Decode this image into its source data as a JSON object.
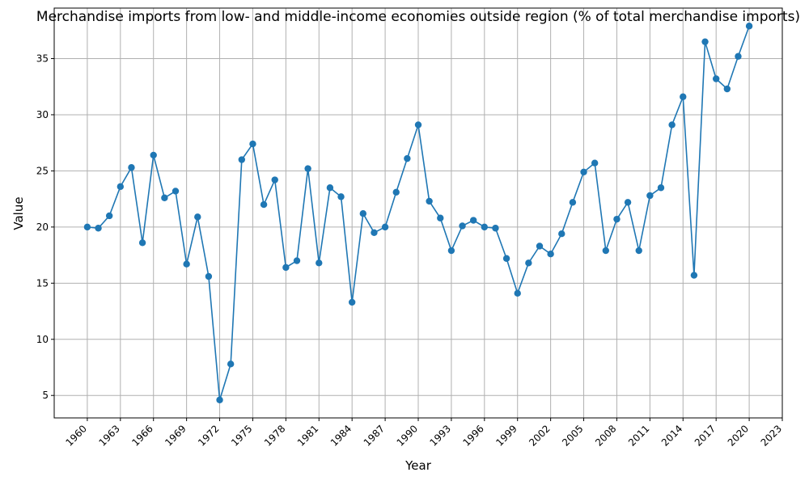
{
  "chart_data": {
    "type": "line",
    "title": "Merchandise imports from low- and middle-income economies outside region (% of total merchandise imports)",
    "xlabel": "Year",
    "ylabel": "Value",
    "xlim": [
      1957,
      2023
    ],
    "ylim": [
      3,
      39.5
    ],
    "x_ticks": [
      1960,
      1963,
      1966,
      1969,
      1972,
      1975,
      1978,
      1981,
      1984,
      1987,
      1990,
      1993,
      1996,
      1999,
      2002,
      2005,
      2008,
      2011,
      2014,
      2017,
      2020,
      2023
    ],
    "y_ticks": [
      5,
      10,
      15,
      20,
      25,
      30,
      35
    ],
    "grid": true,
    "color": "#1f77b4",
    "marker": "circle",
    "series": [
      {
        "x": [
          1960,
          1961,
          1962,
          1963,
          1964,
          1965,
          1966,
          1967,
          1968,
          1969,
          1970,
          1971,
          1972,
          1973,
          1974,
          1975,
          1976,
          1977,
          1978,
          1979,
          1980,
          1981,
          1982,
          1983,
          1984,
          1985,
          1986,
          1987,
          1988,
          1989,
          1990,
          1991,
          1992,
          1993,
          1994,
          1995,
          1996,
          1997,
          1998,
          1999,
          2000,
          2001,
          2002,
          2003,
          2004,
          2005,
          2006,
          2007,
          2008,
          2009,
          2010,
          2011,
          2012,
          2013,
          2014,
          2015,
          2016,
          2017,
          2018,
          2019,
          2020
        ],
        "values": [
          20.0,
          19.9,
          21.0,
          23.6,
          25.3,
          18.6,
          26.4,
          22.6,
          23.2,
          16.7,
          20.9,
          15.6,
          4.6,
          7.8,
          26.0,
          27.4,
          22.0,
          24.2,
          16.4,
          17.0,
          25.2,
          16.8,
          23.5,
          22.7,
          13.3,
          21.2,
          19.5,
          20.0,
          23.1,
          26.1,
          29.1,
          22.3,
          20.8,
          17.9,
          20.1,
          20.6,
          20.0,
          19.9,
          17.2,
          14.1,
          16.8,
          18.3,
          17.6,
          19.4,
          22.2,
          24.9,
          25.7,
          17.9,
          20.7,
          22.2,
          17.9,
          22.8,
          23.5,
          29.1,
          31.6,
          15.7,
          36.5,
          33.2,
          32.3,
          35.2,
          37.9
        ]
      }
    ]
  }
}
